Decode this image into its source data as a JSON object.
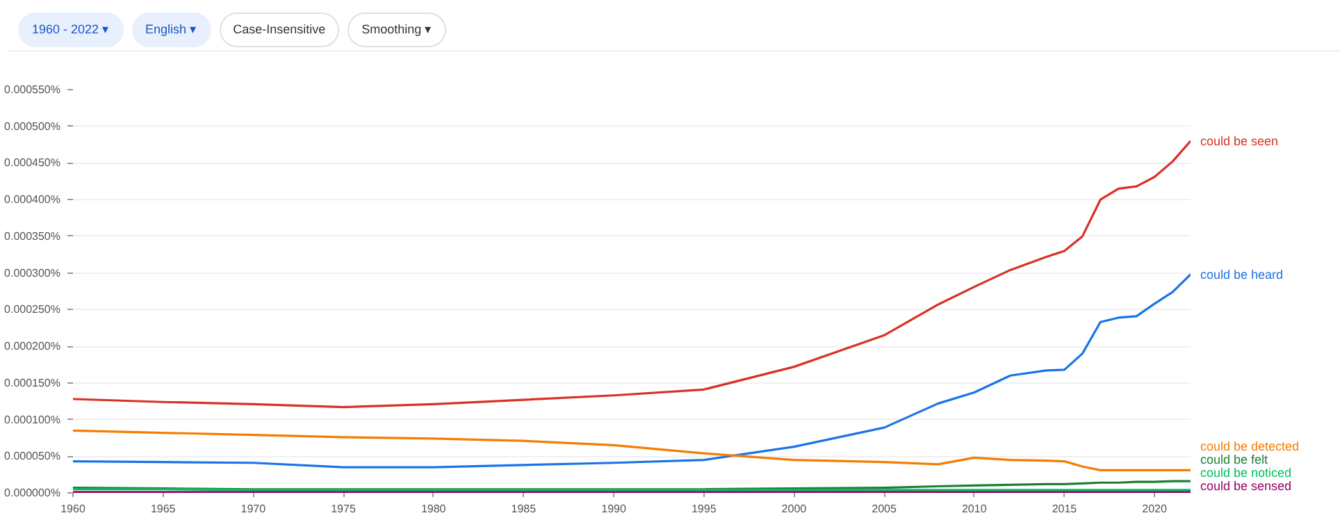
{
  "chart_data": {
    "type": "line",
    "x": [
      1960,
      1965,
      1970,
      1975,
      1980,
      1985,
      1990,
      1995,
      2000,
      2005,
      2008,
      2010,
      2012,
      2014,
      2015,
      2016,
      2017,
      2018,
      2019,
      2020,
      2021,
      2022
    ],
    "xlim": [
      1960,
      2022
    ],
    "xticks": [
      1960,
      1965,
      1970,
      1975,
      1980,
      1985,
      1990,
      1995,
      2000,
      2005,
      2010,
      2015,
      2020
    ],
    "ylim": [
      0,
      0.00055
    ],
    "yticks": [
      {
        "value": 0,
        "label": "0.000000%"
      },
      {
        "value": 5e-05,
        "label": "0.000050%"
      },
      {
        "value": 0.0001,
        "label": "0.000100%"
      },
      {
        "value": 0.00015,
        "label": "0.000150%"
      },
      {
        "value": 0.0002,
        "label": "0.000200%"
      },
      {
        "value": 0.00025,
        "label": "0.000250%"
      },
      {
        "value": 0.0003,
        "label": "0.000300%"
      },
      {
        "value": 0.00035,
        "label": "0.000350%"
      },
      {
        "value": 0.0004,
        "label": "0.000400%"
      },
      {
        "value": 0.00045,
        "label": "0.000450%"
      },
      {
        "value": 0.0005,
        "label": "0.000500%"
      },
      {
        "value": 0.00055,
        "label": "0.000550%"
      }
    ],
    "grid": "y",
    "line_style": "solid",
    "annotations": [
      "1960 - 2022 ▾",
      "English ▾",
      "Case-Insensitive",
      "Smoothing ▾"
    ],
    "series": [
      {
        "name": "could be seen",
        "color": "#d93025",
        "values": [
          0.000128,
          0.000124,
          0.000121,
          0.000117,
          0.000121,
          0.000127,
          0.000133,
          0.000141,
          0.000172,
          0.000215,
          0.000257,
          0.000281,
          0.000304,
          0.000322,
          0.00033,
          0.00035,
          0.0004,
          0.000415,
          0.000418,
          0.000431,
          0.000452,
          0.00048
        ]
      },
      {
        "name": "could be heard",
        "color": "#1a73e8",
        "values": [
          4.3e-05,
          4.2e-05,
          4.1e-05,
          3.5e-05,
          3.5e-05,
          3.8e-05,
          4.1e-05,
          4.5e-05,
          6.3e-05,
          8.9e-05,
          0.000122,
          0.000137,
          0.00016,
          0.000167,
          0.000168,
          0.00019,
          0.000233,
          0.000239,
          0.000241,
          0.000258,
          0.000274,
          0.000298
        ]
      },
      {
        "name": "could be detected",
        "color": "#f57c00",
        "values": [
          8.5e-05,
          8.2e-05,
          7.9e-05,
          7.6e-05,
          7.4e-05,
          7.1e-05,
          6.5e-05,
          5.4e-05,
          4.5e-05,
          4.2e-05,
          3.9e-05,
          4.8e-05,
          4.5e-05,
          4.4e-05,
          4.3e-05,
          3.6e-05,
          3.1e-05,
          3.1e-05,
          3.1e-05,
          3.1e-05,
          3.1e-05,
          3.1e-05
        ]
      },
      {
        "name": "could be felt",
        "color": "#1e7e34",
        "values": [
          7e-06,
          6e-06,
          5e-06,
          5e-06,
          5e-06,
          5e-06,
          5e-06,
          5e-06,
          6e-06,
          7e-06,
          9e-06,
          1e-05,
          1.1e-05,
          1.2e-05,
          1.2e-05,
          1.3e-05,
          1.4e-05,
          1.4e-05,
          1.5e-05,
          1.5e-05,
          1.6e-05,
          1.6e-05
        ]
      },
      {
        "name": "could be noticed",
        "color": "#00c060",
        "values": [
          5e-06,
          5e-06,
          4e-06,
          4e-06,
          4e-06,
          4e-06,
          4e-06,
          4e-06,
          4e-06,
          4e-06,
          4e-06,
          4e-06,
          4e-06,
          4e-06,
          4e-06,
          4e-06,
          4e-06,
          4e-06,
          4e-06,
          4e-06,
          4e-06,
          4e-06
        ]
      },
      {
        "name": "could be sensed",
        "color": "#990066",
        "values": [
          1e-06,
          1e-06,
          1e-06,
          1e-06,
          1e-06,
          1e-06,
          1e-06,
          1e-06,
          1e-06,
          1e-06,
          1e-06,
          1e-06,
          1e-06,
          1e-06,
          1e-06,
          1e-06,
          1e-06,
          1e-06,
          1e-06,
          1e-06,
          1e-06,
          1e-06
        ]
      }
    ]
  }
}
